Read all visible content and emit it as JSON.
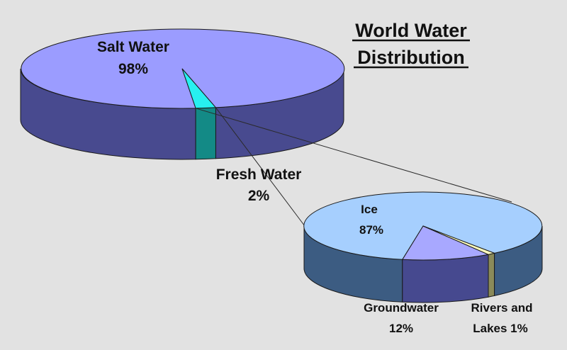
{
  "colors": {
    "background": "#e2e2e2",
    "salt_top": "#9b9cff",
    "salt_side": "#484a8f",
    "fresh_top": "#27f0f0",
    "fresh_side": "#138a86",
    "ice_top": "#a6cffe",
    "ice_side": "#3c5c82",
    "ground_top": "#a8a8ff",
    "ground_side": "#46498f",
    "rivers_top": "#ffffbe",
    "rivers_side": "#8a8a5a",
    "edge": "#1a1a1a"
  },
  "chart_data": [
    {
      "type": "pie",
      "title_lines": [
        "World Water",
        "Distribution"
      ],
      "slices": [
        {
          "name": "Salt Water",
          "value_label": "98%",
          "value": 98
        },
        {
          "name": "Fresh Water",
          "value_label": "2%",
          "value": 2
        }
      ]
    },
    {
      "type": "pie",
      "slices": [
        {
          "name": "Ice",
          "value_label": "87%",
          "value": 87
        },
        {
          "name": "Groundwater",
          "value_label": "12%",
          "value": 12
        },
        {
          "name_lines": [
            "Rivers and",
            "Lakes 1%"
          ],
          "value": 1
        }
      ]
    }
  ]
}
